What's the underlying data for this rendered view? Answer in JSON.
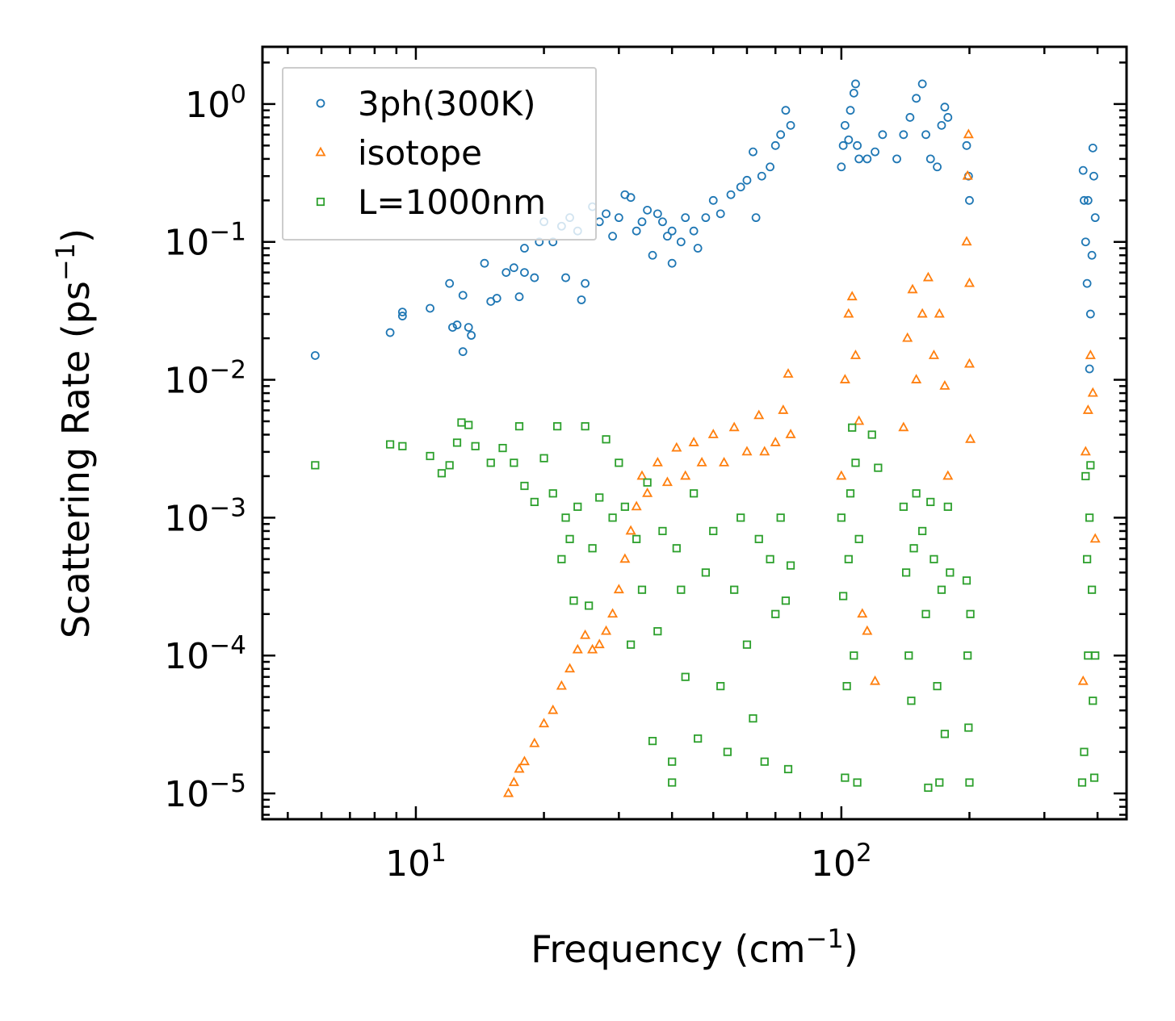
{
  "chart_data": {
    "type": "scatter",
    "title": "",
    "xlabel": {
      "text": "Frequency (cm",
      "sup": "−1",
      "close": ")"
    },
    "ylabel": {
      "text": "Scattering Rate (ps",
      "sup": "−1",
      "close": ")"
    },
    "xscale": "log",
    "yscale": "log",
    "xlim": [
      4.36,
      468
    ],
    "ylim": [
      6.5e-06,
      2.6
    ],
    "grid": false,
    "legend_placement": "top-left",
    "xticks": [
      {
        "value": 10,
        "base": "10",
        "exp": "1"
      },
      {
        "value": 100,
        "base": "10",
        "exp": "2"
      }
    ],
    "yticks": [
      {
        "value": 1,
        "base": "10",
        "exp": "0"
      },
      {
        "value": 0.1,
        "base": "10",
        "exp": "−1"
      },
      {
        "value": 0.01,
        "base": "10",
        "exp": "−2"
      },
      {
        "value": 0.001,
        "base": "10",
        "exp": "−3"
      },
      {
        "value": 0.0001,
        "base": "10",
        "exp": "−4"
      },
      {
        "value": 1e-05,
        "base": "10",
        "exp": "−5"
      }
    ],
    "series": [
      {
        "name": "3ph(300K)",
        "marker": "circle",
        "color": "#1f77b4",
        "points": [
          [
            5.8,
            0.015
          ],
          [
            8.7,
            0.022
          ],
          [
            9.3,
            0.029
          ],
          [
            9.3,
            0.031
          ],
          [
            10.8,
            0.033
          ],
          [
            12,
            0.05
          ],
          [
            12.2,
            0.024
          ],
          [
            12.5,
            0.025
          ],
          [
            12.9,
            0.016
          ],
          [
            12.9,
            0.041
          ],
          [
            13.3,
            0.024
          ],
          [
            13.5,
            0.021
          ],
          [
            14.5,
            0.07
          ],
          [
            15,
            0.037
          ],
          [
            15.5,
            0.039
          ],
          [
            16.3,
            0.06
          ],
          [
            17,
            0.065
          ],
          [
            17.5,
            0.04
          ],
          [
            18,
            0.09
          ],
          [
            18,
            0.06
          ],
          [
            19,
            0.055
          ],
          [
            19.5,
            0.1
          ],
          [
            20,
            0.14
          ],
          [
            21,
            0.1
          ],
          [
            22,
            0.13
          ],
          [
            22.5,
            0.055
          ],
          [
            23,
            0.15
          ],
          [
            24,
            0.12
          ],
          [
            24.5,
            0.038
          ],
          [
            25,
            0.05
          ],
          [
            26,
            0.18
          ],
          [
            27,
            0.14
          ],
          [
            28,
            0.16
          ],
          [
            29,
            0.11
          ],
          [
            30,
            0.15
          ],
          [
            31,
            0.22
          ],
          [
            32,
            0.21
          ],
          [
            33,
            0.12
          ],
          [
            34,
            0.14
          ],
          [
            35,
            0.17
          ],
          [
            36,
            0.08
          ],
          [
            37,
            0.16
          ],
          [
            38,
            0.14
          ],
          [
            39,
            0.11
          ],
          [
            40,
            0.12
          ],
          [
            40,
            0.07
          ],
          [
            42,
            0.1
          ],
          [
            43,
            0.15
          ],
          [
            45,
            0.12
          ],
          [
            46,
            0.09
          ],
          [
            48,
            0.15
          ],
          [
            50,
            0.2
          ],
          [
            52,
            0.16
          ],
          [
            55,
            0.22
          ],
          [
            58,
            0.25
          ],
          [
            60,
            0.28
          ],
          [
            62,
            0.45
          ],
          [
            63,
            0.15
          ],
          [
            65,
            0.3
          ],
          [
            68,
            0.35
          ],
          [
            70,
            0.5
          ],
          [
            72,
            0.6
          ],
          [
            74,
            0.9
          ],
          [
            76,
            0.7
          ],
          [
            100,
            0.35
          ],
          [
            101,
            0.5
          ],
          [
            102,
            0.7
          ],
          [
            104,
            0.55
          ],
          [
            105,
            0.9
          ],
          [
            107,
            1.2
          ],
          [
            108,
            1.4
          ],
          [
            109,
            0.5
          ],
          [
            110,
            0.4
          ],
          [
            115,
            0.4
          ],
          [
            120,
            0.45
          ],
          [
            125,
            0.6
          ],
          [
            135,
            0.4
          ],
          [
            140,
            0.6
          ],
          [
            145,
            0.8
          ],
          [
            150,
            1.1
          ],
          [
            155,
            1.4
          ],
          [
            158,
            0.6
          ],
          [
            162,
            0.4
          ],
          [
            168,
            0.35
          ],
          [
            172,
            0.7
          ],
          [
            175,
            0.95
          ],
          [
            178,
            0.8
          ],
          [
            197,
            0.5
          ],
          [
            199,
            0.3
          ],
          [
            200,
            0.2
          ],
          [
            370,
            0.33
          ],
          [
            372,
            0.2
          ],
          [
            375,
            0.1
          ],
          [
            378,
            0.05
          ],
          [
            380,
            0.2
          ],
          [
            383,
            0.012
          ],
          [
            385,
            0.03
          ],
          [
            388,
            0.08
          ],
          [
            390,
            0.48
          ],
          [
            392,
            0.3
          ],
          [
            395,
            0.15
          ]
        ]
      },
      {
        "name": "isotope",
        "marker": "triangle",
        "color": "#ff7f0e",
        "points": [
          [
            16.5,
            1e-05
          ],
          [
            17,
            1.2e-05
          ],
          [
            17.5,
            1.5e-05
          ],
          [
            18,
            1.7e-05
          ],
          [
            19,
            2.3e-05
          ],
          [
            20,
            3.2e-05
          ],
          [
            21,
            4e-05
          ],
          [
            22,
            6e-05
          ],
          [
            23,
            8e-05
          ],
          [
            24,
            0.00011
          ],
          [
            25,
            0.00014
          ],
          [
            26,
            0.00011
          ],
          [
            27,
            0.00012
          ],
          [
            28,
            0.00015
          ],
          [
            29,
            0.0002
          ],
          [
            30,
            0.0003
          ],
          [
            31,
            0.0005
          ],
          [
            32,
            0.0008
          ],
          [
            33,
            0.0012
          ],
          [
            34,
            0.002
          ],
          [
            35,
            0.0015
          ],
          [
            37,
            0.0025
          ],
          [
            39,
            0.0018
          ],
          [
            41,
            0.0032
          ],
          [
            43,
            0.002
          ],
          [
            45,
            0.0035
          ],
          [
            47,
            0.0025
          ],
          [
            50,
            0.004
          ],
          [
            53,
            0.0025
          ],
          [
            56,
            0.0045
          ],
          [
            60,
            0.003
          ],
          [
            64,
            0.0055
          ],
          [
            66,
            0.003
          ],
          [
            70,
            0.0035
          ],
          [
            73,
            0.006
          ],
          [
            75,
            0.011
          ],
          [
            76,
            0.004
          ],
          [
            100,
            0.002
          ],
          [
            102,
            0.01
          ],
          [
            104,
            0.03
          ],
          [
            106,
            0.04
          ],
          [
            108,
            0.015
          ],
          [
            110,
            0.005
          ],
          [
            112,
            0.0002
          ],
          [
            115,
            0.00015
          ],
          [
            120,
            6.5e-05
          ],
          [
            140,
            0.0045
          ],
          [
            143,
            0.02
          ],
          [
            147,
            0.045
          ],
          [
            150,
            0.01
          ],
          [
            155,
            0.03
          ],
          [
            160,
            0.055
          ],
          [
            165,
            0.015
          ],
          [
            170,
            0.03
          ],
          [
            175,
            0.009
          ],
          [
            178,
            0.002
          ],
          [
            197,
            0.1
          ],
          [
            198,
            0.3
          ],
          [
            199,
            0.6
          ],
          [
            200,
            0.05
          ],
          [
            200,
            0.013
          ],
          [
            201,
            0.0037
          ],
          [
            370,
            6.5e-05
          ],
          [
            375,
            0.003
          ],
          [
            380,
            0.006
          ],
          [
            385,
            0.015
          ],
          [
            390,
            0.008
          ],
          [
            395,
            0.0007
          ]
        ]
      },
      {
        "name": "L=1000nm",
        "marker": "square",
        "color": "#2ca02c",
        "points": [
          [
            5.8,
            0.0024
          ],
          [
            8.7,
            0.0034
          ],
          [
            9.3,
            0.0033
          ],
          [
            10.8,
            0.0028
          ],
          [
            11.5,
            0.0021
          ],
          [
            12,
            0.0024
          ],
          [
            12.5,
            0.0035
          ],
          [
            12.8,
            0.0049
          ],
          [
            13.3,
            0.0047
          ],
          [
            13.8,
            0.0033
          ],
          [
            15,
            0.0025
          ],
          [
            16,
            0.0032
          ],
          [
            17,
            0.0025
          ],
          [
            17.5,
            0.0046
          ],
          [
            18,
            0.0017
          ],
          [
            19,
            0.0013
          ],
          [
            20,
            0.0027
          ],
          [
            21,
            0.0015
          ],
          [
            21.5,
            0.0046
          ],
          [
            22,
            0.0005
          ],
          [
            22.5,
            0.001
          ],
          [
            23,
            0.0007
          ],
          [
            23.5,
            0.00025
          ],
          [
            24,
            0.0012
          ],
          [
            25,
            0.0046
          ],
          [
            25.5,
            0.00023
          ],
          [
            26,
            0.0006
          ],
          [
            27,
            0.0014
          ],
          [
            28,
            0.0037
          ],
          [
            29,
            0.001
          ],
          [
            30,
            0.0025
          ],
          [
            31,
            0.0012
          ],
          [
            32,
            0.00012
          ],
          [
            33,
            0.0007
          ],
          [
            34,
            0.0003
          ],
          [
            35,
            0.0018
          ],
          [
            36,
            2.4e-05
          ],
          [
            37,
            0.00015
          ],
          [
            38,
            0.0008
          ],
          [
            40,
            1.7e-05
          ],
          [
            40,
            1.2e-05
          ],
          [
            41,
            0.0006
          ],
          [
            42,
            0.0003
          ],
          [
            43,
            7e-05
          ],
          [
            45,
            0.0015
          ],
          [
            46,
            2.5e-05
          ],
          [
            48,
            0.0004
          ],
          [
            50,
            0.0008
          ],
          [
            52,
            6e-05
          ],
          [
            54,
            2e-05
          ],
          [
            56,
            0.0003
          ],
          [
            58,
            0.001
          ],
          [
            60,
            0.00012
          ],
          [
            62,
            3.5e-05
          ],
          [
            64,
            0.0007
          ],
          [
            66,
            1.7e-05
          ],
          [
            68,
            0.0005
          ],
          [
            70,
            0.0002
          ],
          [
            72,
            0.001
          ],
          [
            74,
            0.00025
          ],
          [
            75,
            1.5e-05
          ],
          [
            76,
            0.00045
          ],
          [
            100,
            0.001
          ],
          [
            101,
            0.00027
          ],
          [
            102,
            1.3e-05
          ],
          [
            103,
            6e-05
          ],
          [
            104,
            0.0005
          ],
          [
            105,
            0.0015
          ],
          [
            106,
            0.0045
          ],
          [
            107,
            0.0001
          ],
          [
            108,
            0.0025
          ],
          [
            109,
            1.2e-05
          ],
          [
            110,
            0.0007
          ],
          [
            118,
            0.004
          ],
          [
            122,
            0.0023
          ],
          [
            140,
            0.0012
          ],
          [
            142,
            0.0004
          ],
          [
            144,
            0.0001
          ],
          [
            146,
            4.7e-05
          ],
          [
            148,
            0.0006
          ],
          [
            150,
            0.0015
          ],
          [
            155,
            0.0008
          ],
          [
            158,
            0.0002
          ],
          [
            160,
            1.1e-05
          ],
          [
            162,
            0.0013
          ],
          [
            165,
            0.0005
          ],
          [
            168,
            6e-05
          ],
          [
            170,
            1.2e-05
          ],
          [
            172,
            0.0003
          ],
          [
            175,
            2.7e-05
          ],
          [
            178,
            0.0012
          ],
          [
            180,
            0.0004
          ],
          [
            197,
            0.00035
          ],
          [
            198,
            0.0001
          ],
          [
            199,
            3e-05
          ],
          [
            200,
            1.2e-05
          ],
          [
            201,
            0.0002
          ],
          [
            368,
            1.2e-05
          ],
          [
            372,
            2e-05
          ],
          [
            375,
            0.002
          ],
          [
            378,
            0.0005
          ],
          [
            380,
            0.0001
          ],
          [
            383,
            0.001
          ],
          [
            385,
            0.0024
          ],
          [
            388,
            0.0003
          ],
          [
            390,
            4.7e-05
          ],
          [
            393,
            1.3e-05
          ],
          [
            395,
            0.0001
          ]
        ]
      }
    ]
  }
}
